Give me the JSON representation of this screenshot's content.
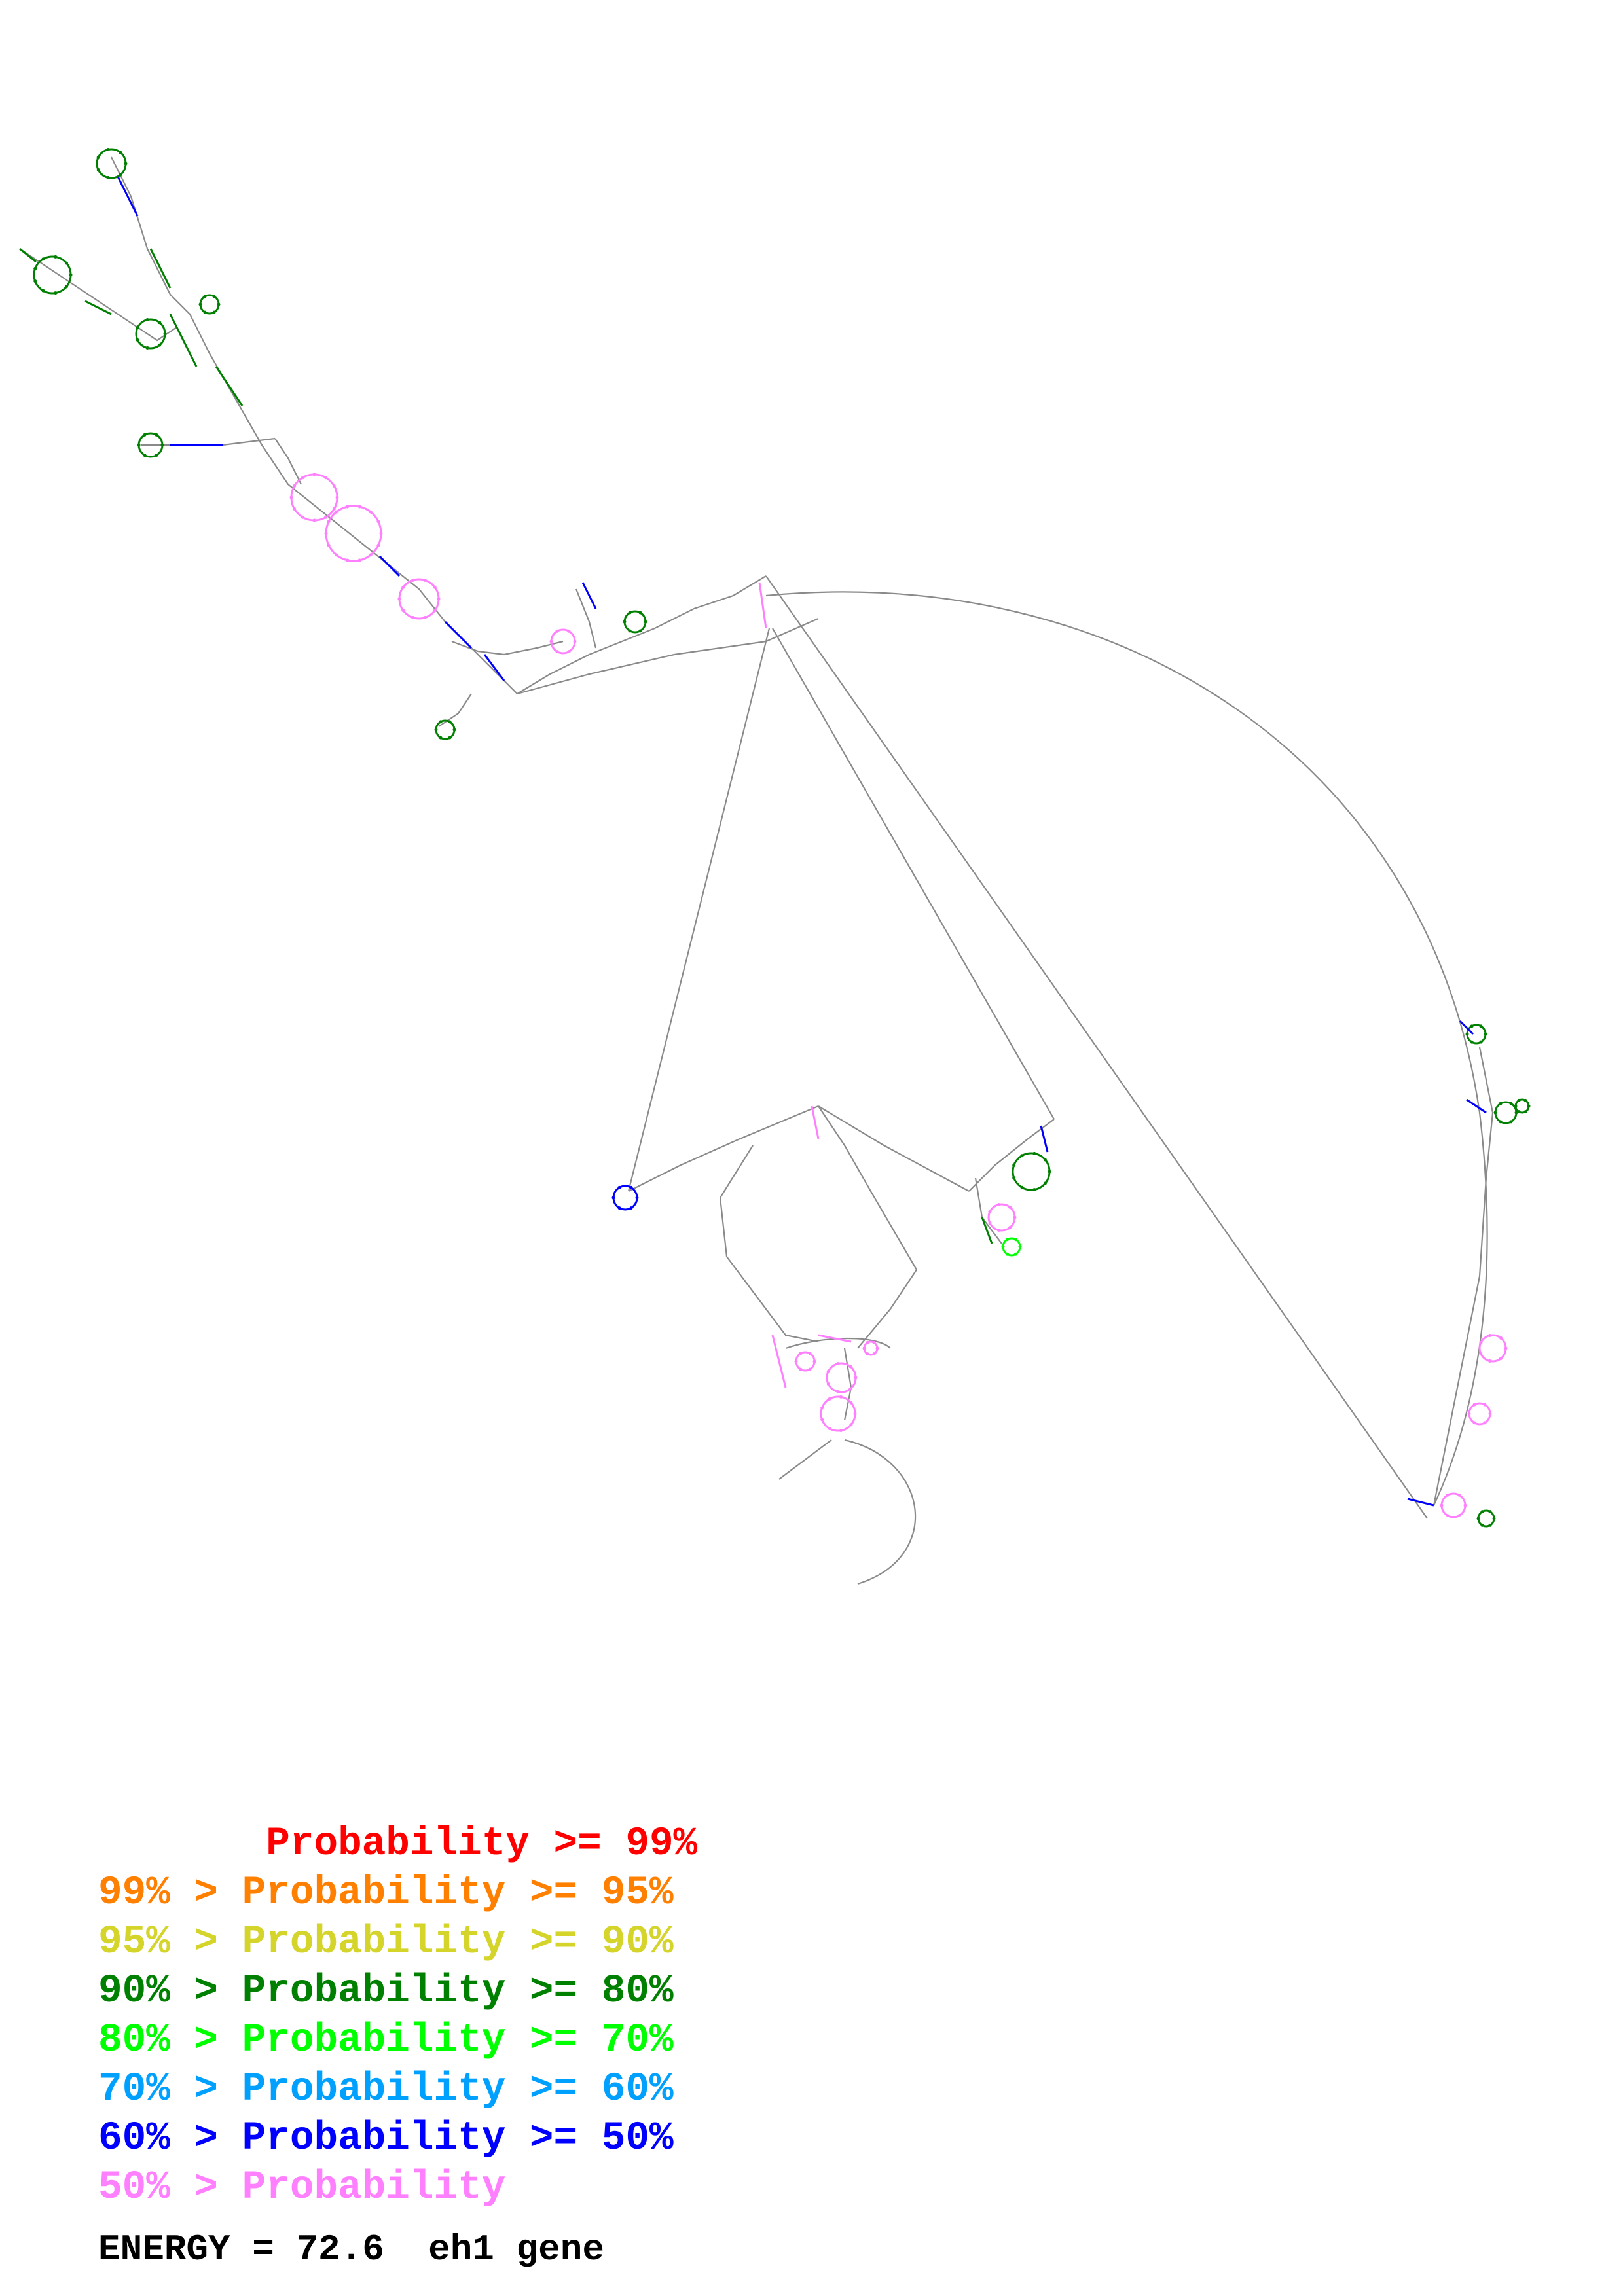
{
  "legend": {
    "rows": [
      {
        "prefix": "       ",
        "text": "Probability >= 99%",
        "color": "#ff0000"
      },
      {
        "prefix": "99% > ",
        "text": "Probability >= 95%",
        "color": "#ff8000"
      },
      {
        "prefix": "95% > ",
        "text": "Probability >= 90%",
        "color": "#d4d42a"
      },
      {
        "prefix": "90% > ",
        "text": "Probability >= 80%",
        "color": "#008000"
      },
      {
        "prefix": "80% > ",
        "text": "Probability >= 70%",
        "color": "#00ff00"
      },
      {
        "prefix": "70% > ",
        "text": "Probability >= 60%",
        "color": "#00a0ff"
      },
      {
        "prefix": "60% > ",
        "text": "Probability >= 50%",
        "color": "#0000ff"
      },
      {
        "prefix": "50% > ",
        "text": "Probability",
        "color": "#ff80ff"
      }
    ]
  },
  "energy": {
    "label": "ENERGY = 72.6  eh1 gene"
  },
  "structure_colors": [
    "#ff0000",
    "#ff8000",
    "#d4d42a",
    "#008000",
    "#00ff00",
    "#00a0ff",
    "#0000ff",
    "#ff80ff",
    "#888888"
  ]
}
